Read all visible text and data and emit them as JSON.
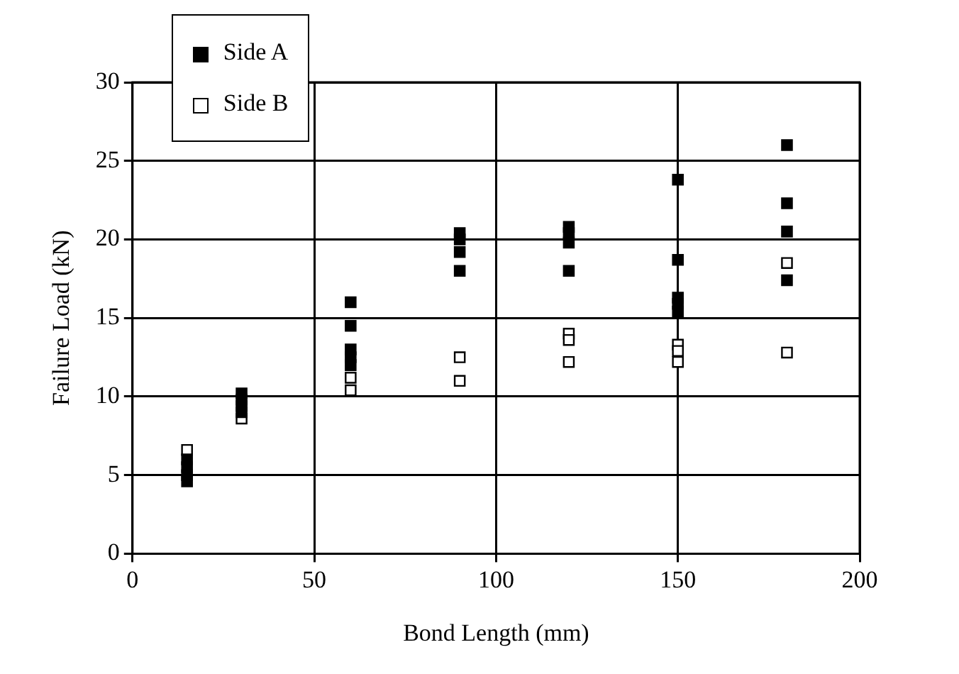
{
  "chart_data": {
    "type": "scatter",
    "xlabel": "Bond Length (mm)",
    "ylabel": "Failure Load (kN)",
    "xlim": [
      0,
      200
    ],
    "xticks": [
      0,
      50,
      100,
      150,
      200
    ],
    "ylim": [
      0,
      30
    ],
    "yticks": [
      0,
      5,
      10,
      15,
      20,
      25,
      30
    ],
    "grid": true,
    "legend": "top left",
    "marker": "square",
    "series": [
      {
        "name": "Side A",
        "color": "#000000",
        "x": [
          15,
          15,
          15,
          15,
          30,
          30,
          30,
          30,
          60,
          60,
          60,
          60,
          60,
          90,
          90,
          90,
          90,
          120,
          120,
          120,
          120,
          150,
          150,
          150,
          150,
          150,
          180,
          180,
          180,
          180
        ],
        "values": [
          6.0,
          5.5,
          5.0,
          4.6,
          10.2,
          9.8,
          9.4,
          9.0,
          16.0,
          14.5,
          13.0,
          12.5,
          12.0,
          20.4,
          20.0,
          19.2,
          18.0,
          20.8,
          20.4,
          19.8,
          18.0,
          23.8,
          18.7,
          16.3,
          15.9,
          15.4,
          26.0,
          22.3,
          20.5,
          17.4
        ]
      },
      {
        "name": "Side B",
        "color": "#ffffff",
        "x": [
          15,
          30,
          60,
          60,
          90,
          90,
          120,
          120,
          120,
          150,
          150,
          150,
          180,
          180
        ],
        "values": [
          6.6,
          8.6,
          11.2,
          10.4,
          12.5,
          11.0,
          14.0,
          13.6,
          12.2,
          13.3,
          12.9,
          12.2,
          18.5,
          12.8
        ]
      }
    ]
  }
}
